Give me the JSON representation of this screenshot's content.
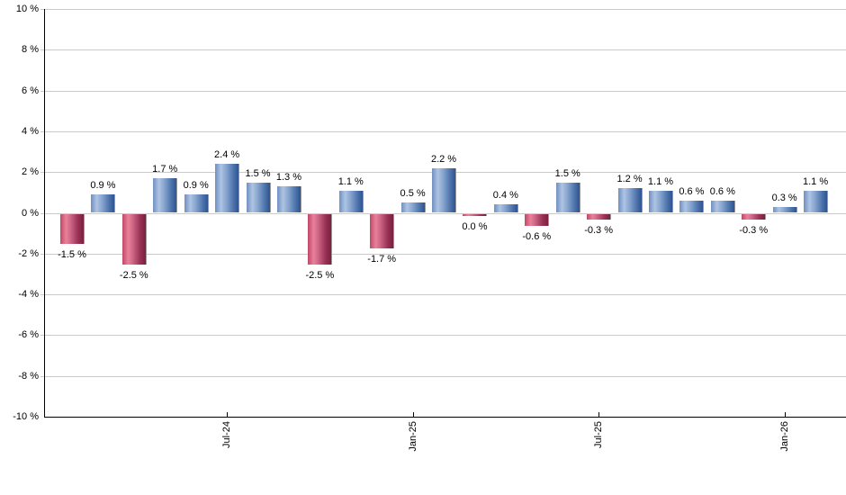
{
  "chart_data": {
    "type": "bar",
    "title": "",
    "xlabel": "",
    "ylabel": "",
    "ylim": [
      -10,
      10
    ],
    "y_tick_step": 2,
    "grid": true,
    "legend": false,
    "y_tick_labels": [
      "10 %",
      "8 %",
      "6 %",
      "4 %",
      "2 %",
      "0 %",
      "-2 %",
      "-4 %",
      "-6 %",
      "-8 %",
      "-10 %"
    ],
    "x_ticks": [
      {
        "bar_index": 5,
        "label": "Jul-24"
      },
      {
        "bar_index": 11,
        "label": "Jan-25"
      },
      {
        "bar_index": 17,
        "label": "Jul-25"
      },
      {
        "bar_index": 23,
        "label": "Jan-26"
      }
    ],
    "bars": [
      {
        "value": -1.5,
        "label": "-1.5 %",
        "color": "negative"
      },
      {
        "value": 0.9,
        "label": "0.9 %",
        "color": "positive"
      },
      {
        "value": -2.5,
        "label": "-2.5 %",
        "color": "negative"
      },
      {
        "value": 1.7,
        "label": "1.7 %",
        "color": "positive"
      },
      {
        "value": 0.9,
        "label": "0.9 %",
        "color": "positive"
      },
      {
        "value": 2.4,
        "label": "2.4 %",
        "color": "positive"
      },
      {
        "value": 1.5,
        "label": "1.5 %",
        "color": "positive"
      },
      {
        "value": 1.3,
        "label": "1.3 %",
        "color": "positive"
      },
      {
        "value": -2.5,
        "label": "-2.5 %",
        "color": "negative"
      },
      {
        "value": 1.1,
        "label": "1.1 %",
        "color": "positive"
      },
      {
        "value": -1.7,
        "label": "-1.7 %",
        "color": "negative"
      },
      {
        "value": 0.5,
        "label": "0.5 %",
        "color": "positive"
      },
      {
        "value": 2.2,
        "label": "2.2 %",
        "color": "positive"
      },
      {
        "value": 0.0,
        "label": "0.0 %",
        "color": "negative"
      },
      {
        "value": 0.4,
        "label": "0.4 %",
        "color": "positive"
      },
      {
        "value": -0.6,
        "label": "-0.6 %",
        "color": "negative"
      },
      {
        "value": 1.5,
        "label": "1.5 %",
        "color": "positive"
      },
      {
        "value": -0.3,
        "label": "-0.3 %",
        "color": "negative"
      },
      {
        "value": 1.2,
        "label": "1.2 %",
        "color": "positive"
      },
      {
        "value": 1.1,
        "label": "1.1 %",
        "color": "positive"
      },
      {
        "value": 0.6,
        "label": "0.6 %",
        "color": "positive"
      },
      {
        "value": 0.6,
        "label": "0.6 %",
        "color": "positive"
      },
      {
        "value": -0.3,
        "label": "-0.3 %",
        "color": "negative"
      },
      {
        "value": 0.3,
        "label": "0.3 %",
        "color": "positive"
      },
      {
        "value": 1.1,
        "label": "1.1 %",
        "color": "positive"
      }
    ],
    "colors": {
      "background": "#FFFFFF",
      "gridline": "#CACACA",
      "axis": "#000000",
      "text": "#000000",
      "bar_shadow": "#9B9B9B",
      "positive_gradient": [
        "#7090C2",
        "#AEC4E2",
        "#8CA9D2",
        "#5379B0",
        "#2E5391"
      ],
      "negative_gradient": [
        "#C04767",
        "#EA819B",
        "#CC6484",
        "#9A3357",
        "#7B1F3D"
      ]
    }
  }
}
